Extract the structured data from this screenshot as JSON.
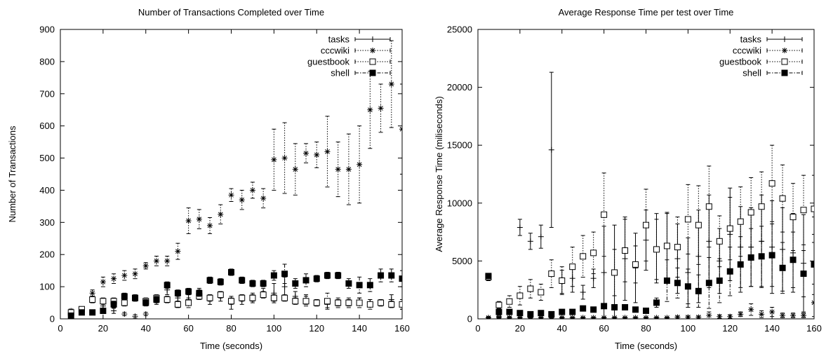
{
  "chart_data": [
    {
      "type": "scatter",
      "title": "Number of Transactions Completed over Time",
      "xlabel": "Time (seconds)",
      "ylabel": "Number of Transactions",
      "xlim": [
        0,
        160
      ],
      "ylim": [
        0,
        900
      ],
      "xticks": [
        0,
        20,
        40,
        60,
        80,
        100,
        120,
        140,
        160
      ],
      "yticks": [
        0,
        100,
        200,
        300,
        400,
        500,
        600,
        700,
        800,
        900
      ],
      "error_bars": true,
      "grid": false,
      "legend_position": "top-right",
      "series": [
        {
          "name": "tasks",
          "marker": "plus",
          "line": "solid",
          "x": [
            5,
            10,
            15,
            20,
            25,
            30,
            35,
            40,
            45,
            50,
            55,
            60,
            65,
            70,
            75,
            80,
            85,
            90,
            95,
            100,
            105,
            110,
            115,
            120,
            125,
            130,
            135,
            140,
            145,
            150,
            155,
            160
          ],
          "y": [
            20,
            30,
            60,
            40,
            25,
            15,
            8,
            15,
            55,
            90,
            65,
            60,
            80,
            60,
            70,
            50,
            60,
            65,
            80,
            80,
            100,
            70,
            60,
            50,
            45,
            50,
            50,
            55,
            50,
            50,
            60,
            40
          ],
          "err": [
            5,
            5,
            10,
            10,
            8,
            5,
            5,
            5,
            10,
            15,
            10,
            15,
            15,
            15,
            15,
            20,
            15,
            15,
            15,
            30,
            30,
            15,
            15,
            10,
            10,
            10,
            10,
            10,
            10,
            10,
            15,
            10
          ]
        },
        {
          "name": "cccwiki",
          "marker": "star",
          "line": "dotted",
          "x": [
            5,
            10,
            15,
            20,
            25,
            30,
            35,
            40,
            45,
            50,
            55,
            60,
            65,
            70,
            75,
            80,
            85,
            90,
            95,
            100,
            105,
            110,
            115,
            120,
            125,
            130,
            135,
            140,
            145,
            150,
            155,
            160
          ],
          "y": [
            25,
            30,
            80,
            115,
            125,
            135,
            140,
            165,
            180,
            180,
            210,
            305,
            310,
            290,
            325,
            385,
            370,
            400,
            375,
            495,
            500,
            465,
            515,
            510,
            520,
            465,
            465,
            480,
            650,
            655,
            730,
            590
          ],
          "err": [
            5,
            8,
            10,
            15,
            15,
            15,
            15,
            10,
            15,
            15,
            25,
            40,
            30,
            25,
            30,
            20,
            30,
            25,
            30,
            95,
            110,
            80,
            30,
            40,
            110,
            85,
            110,
            120,
            120,
            75,
            135,
            140
          ]
        },
        {
          "name": "guestbook",
          "marker": "open-square",
          "line": "dotted",
          "x": [
            5,
            10,
            15,
            20,
            25,
            30,
            35,
            40,
            45,
            50,
            55,
            60,
            65,
            70,
            75,
            80,
            85,
            90,
            95,
            100,
            105,
            110,
            115,
            120,
            125,
            130,
            135,
            140,
            145,
            150,
            155,
            160
          ],
          "y": [
            20,
            30,
            60,
            55,
            55,
            50,
            65,
            55,
            65,
            60,
            45,
            50,
            70,
            65,
            75,
            55,
            65,
            65,
            75,
            65,
            65,
            55,
            55,
            50,
            55,
            50,
            50,
            50,
            45,
            50,
            45,
            45
          ],
          "err": [
            5,
            5,
            10,
            10,
            10,
            10,
            10,
            10,
            10,
            10,
            10,
            15,
            10,
            10,
            10,
            10,
            10,
            10,
            10,
            10,
            10,
            10,
            15,
            10,
            25,
            15,
            15,
            15,
            15,
            10,
            10,
            15
          ]
        },
        {
          "name": "shell",
          "marker": "filled-square",
          "line": "dash-dot",
          "x": [
            5,
            10,
            15,
            20,
            25,
            30,
            35,
            40,
            45,
            50,
            55,
            60,
            65,
            70,
            75,
            80,
            85,
            90,
            95,
            100,
            105,
            110,
            115,
            120,
            125,
            130,
            135,
            140,
            145,
            150,
            155,
            160
          ],
          "y": [
            10,
            20,
            20,
            25,
            45,
            70,
            65,
            50,
            60,
            105,
            80,
            85,
            80,
            120,
            115,
            145,
            120,
            110,
            110,
            135,
            140,
            110,
            120,
            125,
            135,
            135,
            110,
            105,
            105,
            135,
            135,
            125
          ],
          "err": [
            3,
            5,
            5,
            5,
            10,
            10,
            10,
            10,
            10,
            10,
            10,
            10,
            10,
            10,
            10,
            10,
            10,
            10,
            10,
            15,
            30,
            15,
            20,
            10,
            10,
            10,
            15,
            25,
            20,
            20,
            20,
            25
          ]
        }
      ]
    },
    {
      "type": "scatter",
      "title": "Average Response Time per test over Time",
      "xlabel": "Time (seconds)",
      "ylabel": "Average Response Time (miliseconds)",
      "xlim": [
        0,
        160
      ],
      "ylim": [
        0,
        25000
      ],
      "xticks": [
        0,
        20,
        40,
        60,
        80,
        100,
        120,
        140,
        160
      ],
      "yticks": [
        0,
        5000,
        10000,
        15000,
        20000,
        25000
      ],
      "error_bars": true,
      "grid": false,
      "legend_position": "top-right",
      "series": [
        {
          "name": "tasks",
          "marker": "plus",
          "line": "solid",
          "x": [
            5,
            10,
            15,
            20,
            25,
            30,
            35,
            40,
            45,
            50,
            55,
            60,
            65,
            70,
            75,
            80,
            85,
            90,
            95,
            100,
            105,
            110,
            115,
            120,
            125,
            130,
            135,
            140,
            145,
            150,
            155,
            160
          ],
          "y": [
            100,
            200,
            400,
            7900,
            6700,
            7100,
            14600,
            3200,
            3500,
            2300,
            3500,
            4000,
            4000,
            5200,
            4400,
            6800,
            6100,
            6200,
            5200,
            4000,
            5400,
            6700,
            5000,
            7300,
            6200,
            6200,
            6700,
            6200,
            6000,
            5700,
            4800,
            4500
          ],
          "err": [
            100,
            100,
            200,
            700,
            700,
            1000,
            6700,
            1000,
            1200,
            600,
            800,
            4000,
            4100,
            3600,
            3000,
            2600,
            3000,
            3000,
            3000,
            3000,
            4000,
            4000,
            2800,
            4000,
            3500,
            3400,
            4000,
            4000,
            3600,
            3400,
            4200,
            4300
          ]
        },
        {
          "name": "cccwiki",
          "marker": "star",
          "line": "dotted",
          "x": [
            5,
            10,
            15,
            20,
            25,
            30,
            35,
            40,
            45,
            50,
            55,
            60,
            65,
            70,
            75,
            80,
            85,
            90,
            95,
            100,
            105,
            110,
            115,
            120,
            125,
            130,
            135,
            140,
            145,
            150,
            155,
            160
          ],
          "y": [
            100,
            100,
            100,
            100,
            100,
            100,
            100,
            100,
            100,
            100,
            100,
            100,
            100,
            100,
            100,
            100,
            100,
            100,
            150,
            150,
            150,
            300,
            200,
            200,
            400,
            800,
            400,
            600,
            300,
            300,
            300,
            1400
          ],
          "err": [
            50,
            50,
            50,
            50,
            50,
            50,
            50,
            50,
            50,
            50,
            50,
            50,
            50,
            50,
            50,
            50,
            50,
            50,
            100,
            100,
            100,
            300,
            150,
            150,
            200,
            500,
            300,
            400,
            200,
            200,
            200,
            1600
          ]
        },
        {
          "name": "guestbook",
          "marker": "open-square",
          "line": "dotted",
          "x": [
            5,
            10,
            15,
            20,
            25,
            30,
            35,
            40,
            45,
            50,
            55,
            60,
            65,
            70,
            75,
            80,
            85,
            90,
            95,
            100,
            105,
            110,
            115,
            120,
            125,
            130,
            135,
            140,
            145,
            150,
            155,
            160
          ],
          "y": [
            3600,
            1200,
            1500,
            2000,
            2600,
            2300,
            3900,
            3300,
            4500,
            5400,
            5700,
            9000,
            4000,
            5900,
            4700,
            8100,
            6000,
            6300,
            6200,
            8600,
            8100,
            9700,
            6700,
            7800,
            8400,
            9200,
            9700,
            11700,
            10400,
            8800,
            9400,
            9500
          ],
          "err": [
            300,
            300,
            500,
            800,
            800,
            700,
            1200,
            1200,
            1700,
            1800,
            1800,
            3600,
            2000,
            2700,
            1600,
            3100,
            2600,
            2800,
            2600,
            3000,
            3400,
            3500,
            2200,
            2700,
            3000,
            3000,
            3000,
            3300,
            2900,
            2900,
            3000,
            2900
          ]
        },
        {
          "name": "shell",
          "marker": "filled-square",
          "line": "dash-dot",
          "x": [
            5,
            10,
            15,
            20,
            25,
            30,
            35,
            40,
            45,
            50,
            55,
            60,
            65,
            70,
            75,
            80,
            85,
            90,
            95,
            100,
            105,
            110,
            115,
            120,
            125,
            130,
            135,
            140,
            145,
            150,
            155,
            160
          ],
          "y": [
            3700,
            600,
            600,
            500,
            400,
            500,
            400,
            600,
            600,
            900,
            800,
            1100,
            1000,
            1000,
            800,
            700,
            1400,
            3300,
            3100,
            2800,
            2400,
            3100,
            3300,
            4100,
            4700,
            5300,
            5400,
            5500,
            4400,
            5100,
            3900,
            4700
          ],
          "err": [
            200,
            100,
            100,
            100,
            100,
            100,
            100,
            100,
            100,
            200,
            200,
            200,
            200,
            200,
            200,
            200,
            400,
            1800,
            1300,
            1500,
            1400,
            2200,
            1900,
            2100,
            2400,
            2500,
            2600,
            2700,
            2200,
            2400,
            2000,
            2600
          ]
        }
      ]
    }
  ]
}
